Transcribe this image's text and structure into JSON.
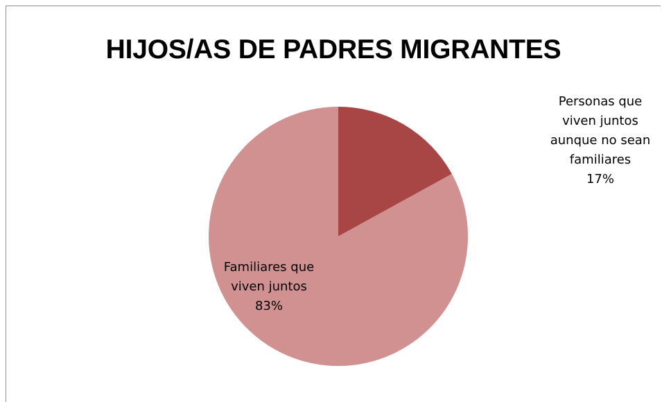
{
  "chart_data": {
    "type": "pie",
    "title": "HIJOS/AS DE PADRES MIGRANTES",
    "slices": [
      {
        "label_lines": [
          "Personas que",
          "viven juntos",
          "aunque no sean",
          "familiares"
        ],
        "percent_label": "17%",
        "value": 17,
        "color": "#a84545"
      },
      {
        "label_lines": [
          "Familiares que",
          "viven juntos"
        ],
        "percent_label": "83%",
        "value": 83,
        "color": "#d19191"
      }
    ]
  }
}
